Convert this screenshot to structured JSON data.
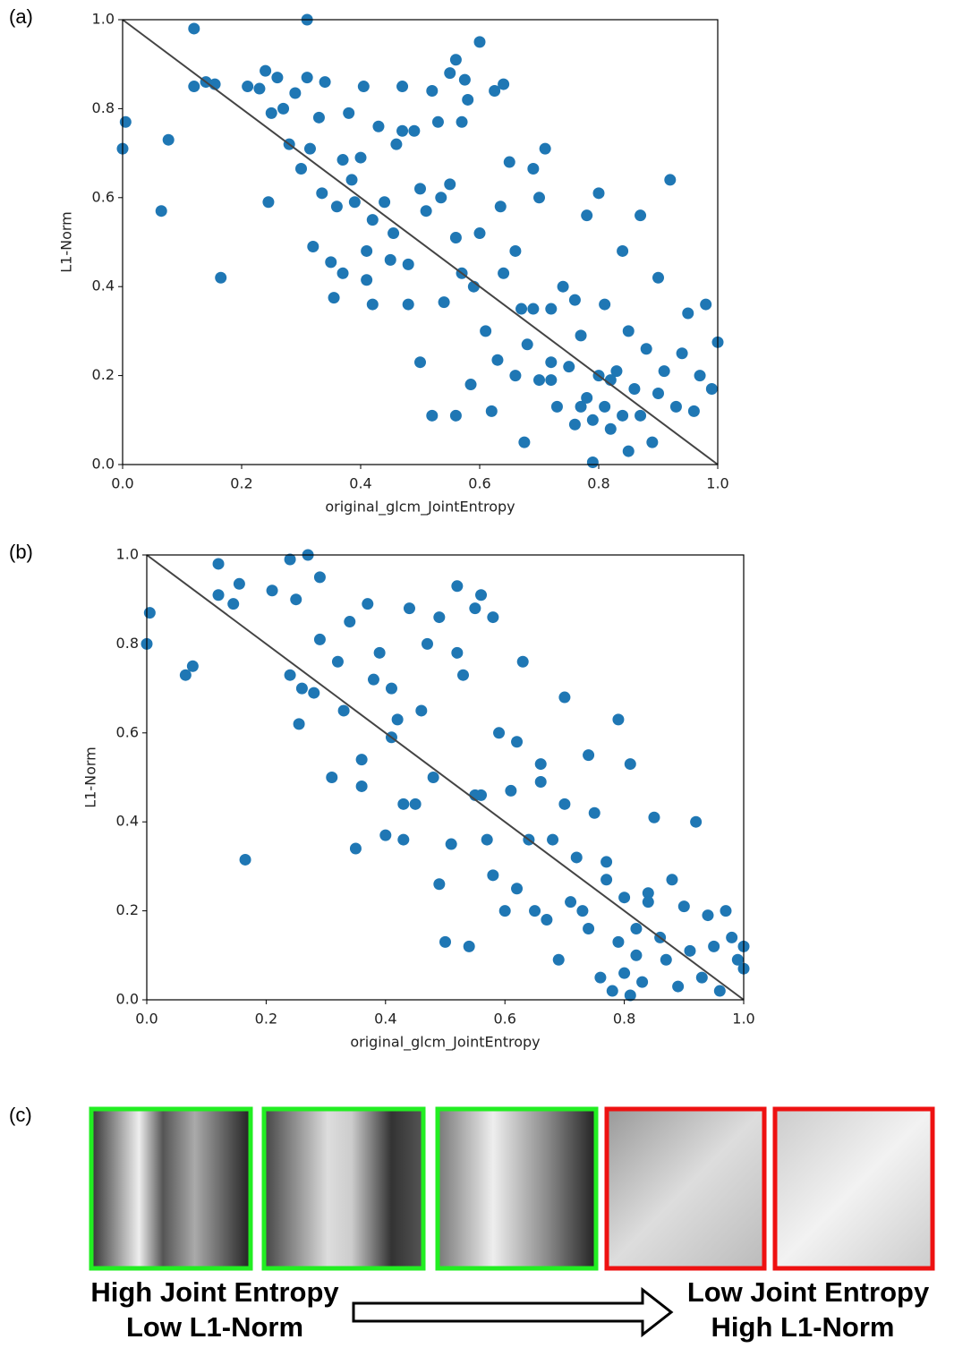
{
  "chart_data": [
    {
      "type": "scatter",
      "label": "(a)",
      "x_label": "original_glcm_JointEntropy",
      "y_label": "L1-Norm",
      "color": "#1f77b4",
      "xlim": [
        0,
        1
      ],
      "ylim": [
        0,
        1
      ],
      "xticks": [
        {
          "value": 0,
          "label": "0.0"
        },
        0.2,
        0.4,
        0.6,
        0.8,
        {
          "value": 1,
          "label": "1.0"
        }
      ],
      "yticks": [
        {
          "value": 0,
          "label": "0.0"
        },
        0.2,
        0.4,
        0.6,
        0.8,
        {
          "value": 1,
          "label": "1.0"
        }
      ],
      "x": [
        0.0,
        0.005,
        0.065,
        0.077,
        0.12,
        0.12,
        0.14,
        0.155,
        0.165,
        0.21,
        0.23,
        0.24,
        0.245,
        0.26,
        0.25,
        0.27,
        0.28,
        0.29,
        0.3,
        0.31,
        0.315,
        0.31,
        0.32,
        0.33,
        0.335,
        0.34,
        0.35,
        0.355,
        0.36,
        0.37,
        0.37,
        0.38,
        0.385,
        0.39,
        0.4,
        0.405,
        0.41,
        0.41,
        0.42,
        0.42,
        0.43,
        0.44,
        0.45,
        0.455,
        0.46,
        0.47,
        0.48,
        0.48,
        0.49,
        0.5,
        0.5,
        0.51,
        0.52,
        0.52,
        0.53,
        0.535,
        0.54,
        0.55,
        0.56,
        0.56,
        0.56,
        0.57,
        0.57,
        0.575,
        0.58,
        0.585,
        0.59,
        0.6,
        0.61,
        0.62,
        0.625,
        0.63,
        0.635,
        0.64,
        0.65,
        0.66,
        0.67,
        0.675,
        0.68,
        0.69,
        0.7,
        0.7,
        0.71,
        0.72,
        0.72,
        0.73,
        0.74,
        0.75,
        0.76,
        0.77,
        0.78,
        0.78,
        0.79,
        0.79,
        0.8,
        0.8,
        0.81,
        0.81,
        0.82,
        0.83,
        0.84,
        0.84,
        0.85,
        0.85,
        0.86,
        0.87,
        0.87,
        0.88,
        0.89,
        0.9,
        0.9,
        0.91,
        0.92,
        0.93,
        0.94,
        0.95,
        0.96,
        0.97,
        0.98,
        0.99,
        1.0,
        0.6,
        0.64,
        0.69,
        0.55,
        0.47,
        0.66,
        0.72,
        0.77,
        0.82,
        0.76
      ],
      "values": [
        0.71,
        0.77,
        0.57,
        0.73,
        0.85,
        0.98,
        0.86,
        0.855,
        0.42,
        0.85,
        0.845,
        0.885,
        0.59,
        0.87,
        0.79,
        0.8,
        0.72,
        0.835,
        0.665,
        0.87,
        0.71,
        1.0,
        0.49,
        0.78,
        0.61,
        0.86,
        0.455,
        0.375,
        0.58,
        0.685,
        0.43,
        0.79,
        0.64,
        0.59,
        0.69,
        0.85,
        0.48,
        0.415,
        0.36,
        0.55,
        0.76,
        0.59,
        0.46,
        0.52,
        0.72,
        0.85,
        0.45,
        0.36,
        0.75,
        0.23,
        0.62,
        0.57,
        0.84,
        0.11,
        0.77,
        0.6,
        0.365,
        0.88,
        0.91,
        0.51,
        0.11,
        0.43,
        0.77,
        0.865,
        0.82,
        0.18,
        0.4,
        0.52,
        0.3,
        0.12,
        0.84,
        0.235,
        0.58,
        0.43,
        0.68,
        0.2,
        0.35,
        0.05,
        0.27,
        0.665,
        0.19,
        0.6,
        0.71,
        0.35,
        0.23,
        0.13,
        0.4,
        0.22,
        0.09,
        0.29,
        0.15,
        0.56,
        0.1,
        0.005,
        0.2,
        0.61,
        0.13,
        0.36,
        0.08,
        0.21,
        0.11,
        0.48,
        0.03,
        0.3,
        0.17,
        0.56,
        0.11,
        0.26,
        0.05,
        0.42,
        0.16,
        0.21,
        0.64,
        0.13,
        0.25,
        0.34,
        0.12,
        0.2,
        0.36,
        0.17,
        0.275,
        0.95,
        0.855,
        0.35,
        0.63,
        0.75,
        0.48,
        0.19,
        0.13,
        0.19,
        0.37
      ]
    },
    {
      "type": "scatter",
      "label": "(b)",
      "x_label": "original_glcm_JointEntropy",
      "y_label": "L1-Norm",
      "color": "#1f77b4",
      "xlim": [
        0,
        1
      ],
      "ylim": [
        0,
        1
      ],
      "xticks": [
        {
          "value": 0,
          "label": "0.0"
        },
        0.2,
        0.4,
        0.6,
        0.8,
        {
          "value": 1,
          "label": "1.0"
        }
      ],
      "yticks": [
        {
          "value": 0,
          "label": "0.0"
        },
        0.2,
        0.4,
        0.6,
        0.8,
        {
          "value": 1,
          "label": "1.0"
        }
      ],
      "x": [
        0.0,
        0.005,
        0.065,
        0.077,
        0.12,
        0.12,
        0.145,
        0.155,
        0.165,
        0.21,
        0.24,
        0.24,
        0.25,
        0.255,
        0.26,
        0.27,
        0.28,
        0.29,
        0.29,
        0.31,
        0.32,
        0.33,
        0.34,
        0.35,
        0.36,
        0.36,
        0.37,
        0.38,
        0.39,
        0.4,
        0.41,
        0.41,
        0.42,
        0.43,
        0.44,
        0.45,
        0.46,
        0.47,
        0.48,
        0.49,
        0.49,
        0.5,
        0.51,
        0.52,
        0.52,
        0.53,
        0.54,
        0.55,
        0.56,
        0.56,
        0.57,
        0.58,
        0.58,
        0.59,
        0.6,
        0.61,
        0.62,
        0.63,
        0.64,
        0.65,
        0.66,
        0.67,
        0.68,
        0.69,
        0.7,
        0.71,
        0.72,
        0.73,
        0.74,
        0.75,
        0.76,
        0.77,
        0.78,
        0.79,
        0.8,
        0.8,
        0.81,
        0.81,
        0.82,
        0.82,
        0.83,
        0.84,
        0.85,
        0.86,
        0.87,
        0.88,
        0.89,
        0.9,
        0.91,
        0.92,
        0.93,
        0.94,
        0.95,
        0.96,
        0.97,
        0.98,
        0.99,
        1.0,
        1.0,
        0.7,
        0.55,
        0.62,
        0.43,
        0.74,
        0.79,
        0.84,
        0.77,
        0.66
      ],
      "values": [
        0.8,
        0.87,
        0.73,
        0.75,
        0.91,
        0.98,
        0.89,
        0.935,
        0.315,
        0.92,
        0.73,
        0.99,
        0.9,
        0.62,
        0.7,
        1.0,
        0.69,
        0.81,
        0.95,
        0.5,
        0.76,
        0.65,
        0.85,
        0.34,
        0.48,
        0.54,
        0.89,
        0.72,
        0.78,
        0.37,
        0.59,
        0.7,
        0.63,
        0.44,
        0.88,
        0.44,
        0.65,
        0.8,
        0.5,
        0.26,
        0.86,
        0.13,
        0.35,
        0.93,
        0.78,
        0.73,
        0.12,
        0.88,
        0.91,
        0.46,
        0.36,
        0.86,
        0.28,
        0.6,
        0.2,
        0.47,
        0.25,
        0.76,
        0.36,
        0.2,
        0.53,
        0.18,
        0.36,
        0.09,
        0.44,
        0.22,
        0.32,
        0.2,
        0.16,
        0.42,
        0.05,
        0.27,
        0.02,
        0.13,
        0.23,
        0.06,
        0.53,
        0.01,
        0.16,
        0.1,
        0.04,
        0.24,
        0.41,
        0.14,
        0.09,
        0.27,
        0.03,
        0.21,
        0.11,
        0.4,
        0.05,
        0.19,
        0.12,
        0.02,
        0.2,
        0.14,
        0.09,
        0.07,
        0.12,
        0.68,
        0.46,
        0.58,
        0.36,
        0.55,
        0.63,
        0.22,
        0.31,
        0.49
      ]
    }
  ],
  "image_panel": {
    "label": "(c)",
    "left_caption": [
      "High Joint Entropy",
      "Low L1-Norm"
    ],
    "right_caption": [
      "Low Joint Entropy",
      "High L1-Norm"
    ]
  }
}
